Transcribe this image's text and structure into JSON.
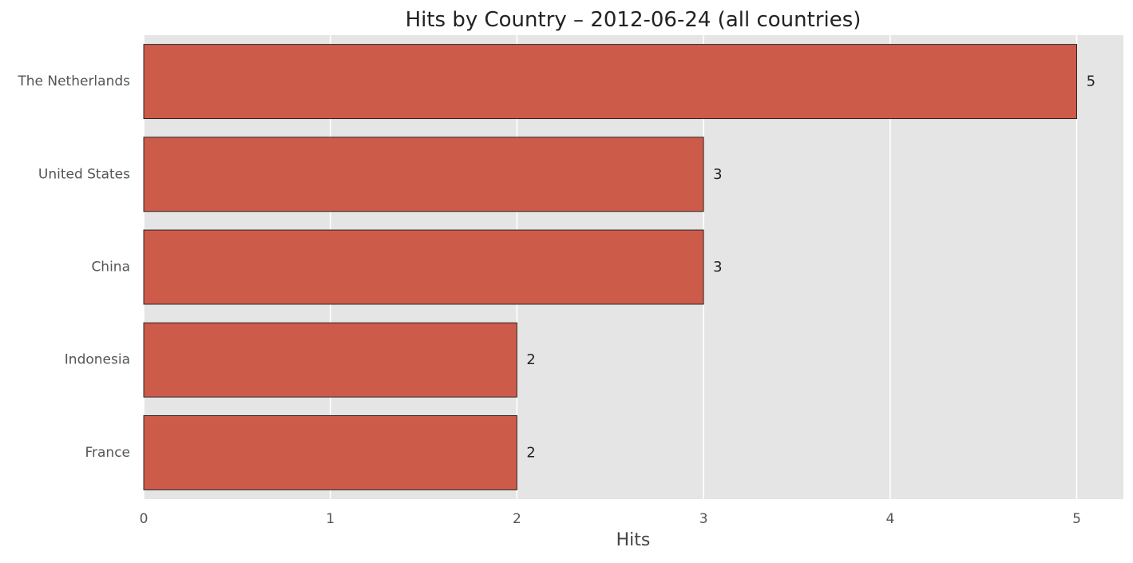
{
  "chart_data": {
    "type": "bar",
    "orientation": "horizontal",
    "title": "Hits by Country – 2012-06-24 (all countries)",
    "xlabel": "Hits",
    "ylabel": "",
    "categories": [
      "The Netherlands",
      "United States",
      "China",
      "Indonesia",
      "France"
    ],
    "values": [
      5,
      3,
      3,
      2,
      2
    ],
    "data_labels": [
      "5",
      "3",
      "3",
      "2",
      "2"
    ],
    "x_ticks": [
      0,
      1,
      2,
      3,
      4,
      5
    ],
    "x_tick_labels": [
      "0",
      "1",
      "2",
      "3",
      "4",
      "5"
    ],
    "xlim": [
      0,
      5.25
    ],
    "grid": true,
    "legend": "none",
    "colors": {
      "bar": "#cd5b4a",
      "bar_edge": "#1a1a1a",
      "plot_background": "#e5e5e5",
      "grid": "#ffffff"
    }
  }
}
